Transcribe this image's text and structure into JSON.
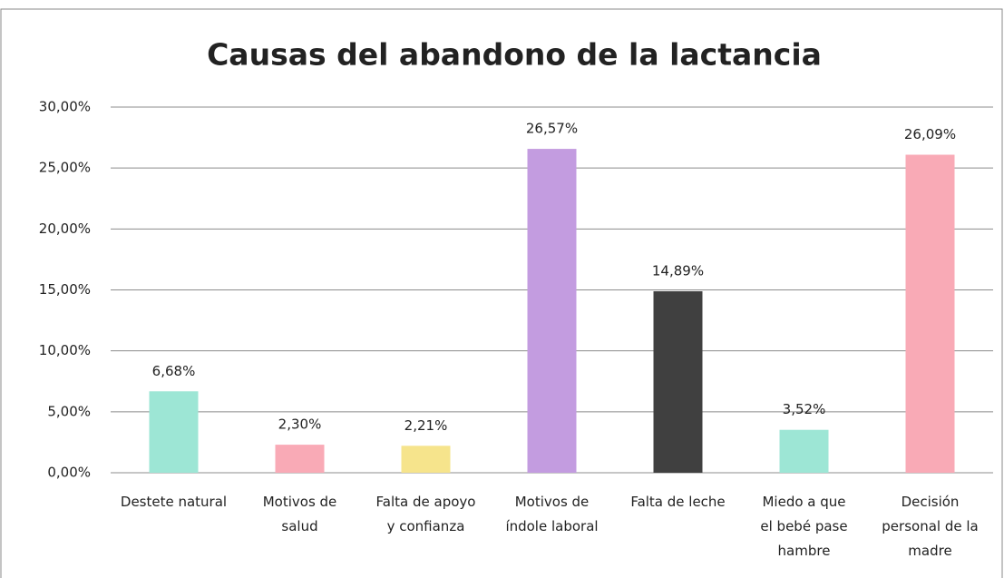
{
  "chart_data": {
    "type": "bar",
    "title": "Causas del abandono de la lactancia",
    "categories": [
      "Destete natural",
      "Motivos de salud",
      "Falta de apoyo y confianza",
      "Motivos de índole laboral",
      "Falta de leche",
      "Miedo a que el bebé pase hambre",
      "Decisión personal de la madre"
    ],
    "values": [
      6.68,
      2.3,
      2.21,
      26.57,
      14.89,
      3.52,
      26.09
    ],
    "value_labels": [
      "6,68%",
      "2,30%",
      "2,21%",
      "26,57%",
      "14,89%",
      "3,52%",
      "26,09%"
    ],
    "colors": [
      "#9de6d5",
      "#f9aab6",
      "#f6e48c",
      "#c39ce0",
      "#404040",
      "#9de6d5",
      "#f9aab6"
    ],
    "ylim": [
      0,
      30
    ],
    "yticks": [
      {
        "value": 0,
        "label": "0,00%"
      },
      {
        "value": 5,
        "label": "5,00%"
      },
      {
        "value": 10,
        "label": "10,00%"
      },
      {
        "value": 15,
        "label": "15,00%"
      },
      {
        "value": 20,
        "label": "20,00%"
      },
      {
        "value": 25,
        "label": "25,00%"
      },
      {
        "value": 30,
        "label": "30,00%"
      }
    ],
    "grid": true
  }
}
